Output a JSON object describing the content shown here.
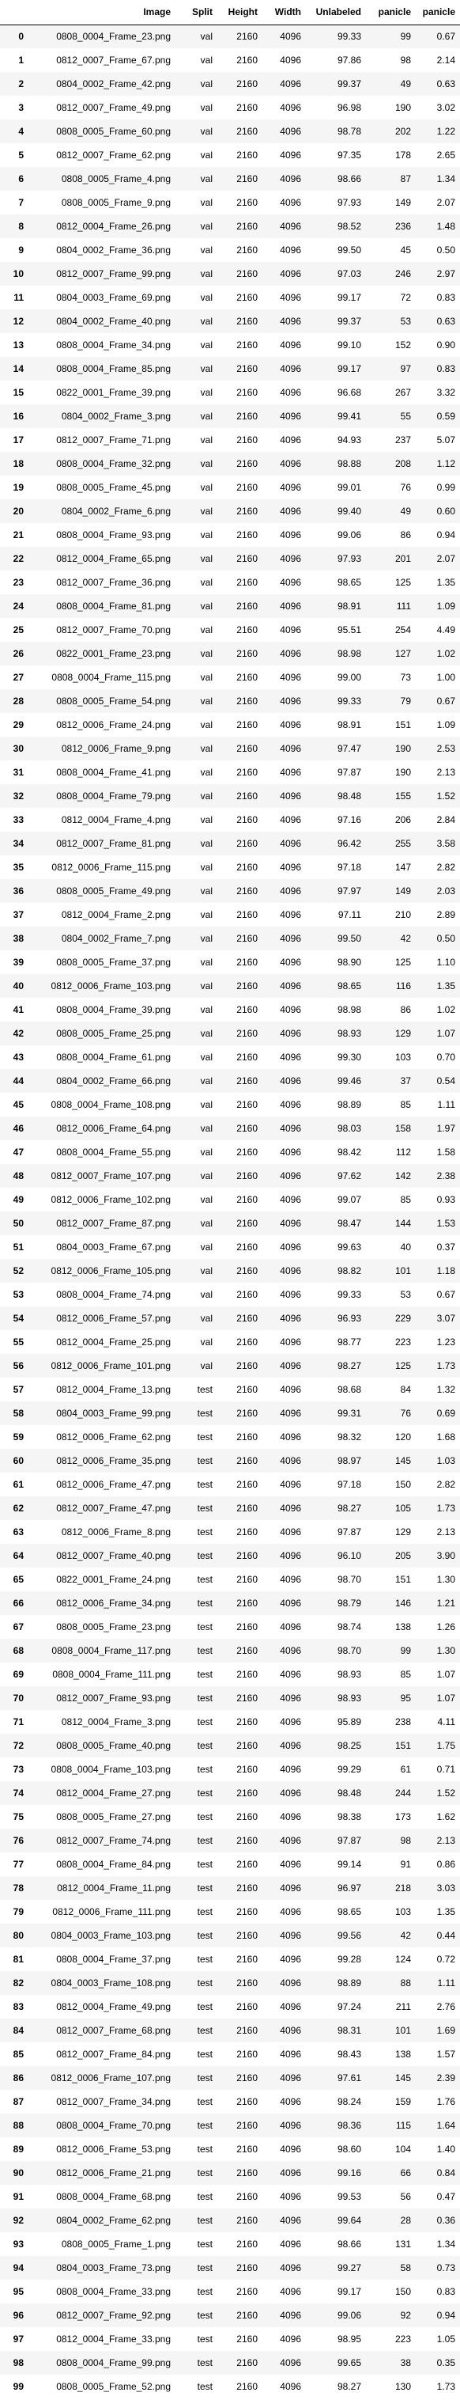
{
  "table": {
    "columns": [
      "",
      "Image",
      "Split",
      "Height",
      "Width",
      "Unlabeled",
      "panicle",
      "panicle"
    ],
    "rows": [
      [
        "0",
        "0808_0004_Frame_23.png",
        "val",
        "2160",
        "4096",
        "99.33",
        "99",
        "0.67"
      ],
      [
        "1",
        "0812_0007_Frame_67.png",
        "val",
        "2160",
        "4096",
        "97.86",
        "98",
        "2.14"
      ],
      [
        "2",
        "0804_0002_Frame_42.png",
        "val",
        "2160",
        "4096",
        "99.37",
        "49",
        "0.63"
      ],
      [
        "3",
        "0812_0007_Frame_49.png",
        "val",
        "2160",
        "4096",
        "96.98",
        "190",
        "3.02"
      ],
      [
        "4",
        "0808_0005_Frame_60.png",
        "val",
        "2160",
        "4096",
        "98.78",
        "202",
        "1.22"
      ],
      [
        "5",
        "0812_0007_Frame_62.png",
        "val",
        "2160",
        "4096",
        "97.35",
        "178",
        "2.65"
      ],
      [
        "6",
        "0808_0005_Frame_4.png",
        "val",
        "2160",
        "4096",
        "98.66",
        "87",
        "1.34"
      ],
      [
        "7",
        "0808_0005_Frame_9.png",
        "val",
        "2160",
        "4096",
        "97.93",
        "149",
        "2.07"
      ],
      [
        "8",
        "0812_0004_Frame_26.png",
        "val",
        "2160",
        "4096",
        "98.52",
        "236",
        "1.48"
      ],
      [
        "9",
        "0804_0002_Frame_36.png",
        "val",
        "2160",
        "4096",
        "99.50",
        "45",
        "0.50"
      ],
      [
        "10",
        "0812_0007_Frame_99.png",
        "val",
        "2160",
        "4096",
        "97.03",
        "246",
        "2.97"
      ],
      [
        "11",
        "0804_0003_Frame_69.png",
        "val",
        "2160",
        "4096",
        "99.17",
        "72",
        "0.83"
      ],
      [
        "12",
        "0804_0002_Frame_40.png",
        "val",
        "2160",
        "4096",
        "99.37",
        "53",
        "0.63"
      ],
      [
        "13",
        "0808_0004_Frame_34.png",
        "val",
        "2160",
        "4096",
        "99.10",
        "152",
        "0.90"
      ],
      [
        "14",
        "0808_0004_Frame_85.png",
        "val",
        "2160",
        "4096",
        "99.17",
        "97",
        "0.83"
      ],
      [
        "15",
        "0822_0001_Frame_39.png",
        "val",
        "2160",
        "4096",
        "96.68",
        "267",
        "3.32"
      ],
      [
        "16",
        "0804_0002_Frame_3.png",
        "val",
        "2160",
        "4096",
        "99.41",
        "55",
        "0.59"
      ],
      [
        "17",
        "0812_0007_Frame_71.png",
        "val",
        "2160",
        "4096",
        "94.93",
        "237",
        "5.07"
      ],
      [
        "18",
        "0808_0004_Frame_32.png",
        "val",
        "2160",
        "4096",
        "98.88",
        "208",
        "1.12"
      ],
      [
        "19",
        "0808_0005_Frame_45.png",
        "val",
        "2160",
        "4096",
        "99.01",
        "76",
        "0.99"
      ],
      [
        "20",
        "0804_0002_Frame_6.png",
        "val",
        "2160",
        "4096",
        "99.40",
        "49",
        "0.60"
      ],
      [
        "21",
        "0808_0004_Frame_93.png",
        "val",
        "2160",
        "4096",
        "99.06",
        "86",
        "0.94"
      ],
      [
        "22",
        "0812_0004_Frame_65.png",
        "val",
        "2160",
        "4096",
        "97.93",
        "201",
        "2.07"
      ],
      [
        "23",
        "0812_0007_Frame_36.png",
        "val",
        "2160",
        "4096",
        "98.65",
        "125",
        "1.35"
      ],
      [
        "24",
        "0808_0004_Frame_81.png",
        "val",
        "2160",
        "4096",
        "98.91",
        "111",
        "1.09"
      ],
      [
        "25",
        "0812_0007_Frame_70.png",
        "val",
        "2160",
        "4096",
        "95.51",
        "254",
        "4.49"
      ],
      [
        "26",
        "0822_0001_Frame_23.png",
        "val",
        "2160",
        "4096",
        "98.98",
        "127",
        "1.02"
      ],
      [
        "27",
        "0808_0004_Frame_115.png",
        "val",
        "2160",
        "4096",
        "99.00",
        "73",
        "1.00"
      ],
      [
        "28",
        "0808_0005_Frame_54.png",
        "val",
        "2160",
        "4096",
        "99.33",
        "79",
        "0.67"
      ],
      [
        "29",
        "0812_0006_Frame_24.png",
        "val",
        "2160",
        "4096",
        "98.91",
        "151",
        "1.09"
      ],
      [
        "30",
        "0812_0006_Frame_9.png",
        "val",
        "2160",
        "4096",
        "97.47",
        "190",
        "2.53"
      ],
      [
        "31",
        "0808_0004_Frame_41.png",
        "val",
        "2160",
        "4096",
        "97.87",
        "190",
        "2.13"
      ],
      [
        "32",
        "0808_0004_Frame_79.png",
        "val",
        "2160",
        "4096",
        "98.48",
        "155",
        "1.52"
      ],
      [
        "33",
        "0812_0004_Frame_4.png",
        "val",
        "2160",
        "4096",
        "97.16",
        "206",
        "2.84"
      ],
      [
        "34",
        "0812_0007_Frame_81.png",
        "val",
        "2160",
        "4096",
        "96.42",
        "255",
        "3.58"
      ],
      [
        "35",
        "0812_0006_Frame_115.png",
        "val",
        "2160",
        "4096",
        "97.18",
        "147",
        "2.82"
      ],
      [
        "36",
        "0808_0005_Frame_49.png",
        "val",
        "2160",
        "4096",
        "97.97",
        "149",
        "2.03"
      ],
      [
        "37",
        "0812_0004_Frame_2.png",
        "val",
        "2160",
        "4096",
        "97.11",
        "210",
        "2.89"
      ],
      [
        "38",
        "0804_0002_Frame_7.png",
        "val",
        "2160",
        "4096",
        "99.50",
        "42",
        "0.50"
      ],
      [
        "39",
        "0808_0005_Frame_37.png",
        "val",
        "2160",
        "4096",
        "98.90",
        "125",
        "1.10"
      ],
      [
        "40",
        "0812_0006_Frame_103.png",
        "val",
        "2160",
        "4096",
        "98.65",
        "116",
        "1.35"
      ],
      [
        "41",
        "0808_0004_Frame_39.png",
        "val",
        "2160",
        "4096",
        "98.98",
        "86",
        "1.02"
      ],
      [
        "42",
        "0808_0005_Frame_25.png",
        "val",
        "2160",
        "4096",
        "98.93",
        "129",
        "1.07"
      ],
      [
        "43",
        "0808_0004_Frame_61.png",
        "val",
        "2160",
        "4096",
        "99.30",
        "103",
        "0.70"
      ],
      [
        "44",
        "0804_0002_Frame_66.png",
        "val",
        "2160",
        "4096",
        "99.46",
        "37",
        "0.54"
      ],
      [
        "45",
        "0808_0004_Frame_108.png",
        "val",
        "2160",
        "4096",
        "98.89",
        "85",
        "1.11"
      ],
      [
        "46",
        "0812_0006_Frame_64.png",
        "val",
        "2160",
        "4096",
        "98.03",
        "158",
        "1.97"
      ],
      [
        "47",
        "0808_0004_Frame_55.png",
        "val",
        "2160",
        "4096",
        "98.42",
        "112",
        "1.58"
      ],
      [
        "48",
        "0812_0007_Frame_107.png",
        "val",
        "2160",
        "4096",
        "97.62",
        "142",
        "2.38"
      ],
      [
        "49",
        "0812_0006_Frame_102.png",
        "val",
        "2160",
        "4096",
        "99.07",
        "85",
        "0.93"
      ],
      [
        "50",
        "0812_0007_Frame_87.png",
        "val",
        "2160",
        "4096",
        "98.47",
        "144",
        "1.53"
      ],
      [
        "51",
        "0804_0003_Frame_67.png",
        "val",
        "2160",
        "4096",
        "99.63",
        "40",
        "0.37"
      ],
      [
        "52",
        "0812_0006_Frame_105.png",
        "val",
        "2160",
        "4096",
        "98.82",
        "101",
        "1.18"
      ],
      [
        "53",
        "0808_0004_Frame_74.png",
        "val",
        "2160",
        "4096",
        "99.33",
        "53",
        "0.67"
      ],
      [
        "54",
        "0812_0006_Frame_57.png",
        "val",
        "2160",
        "4096",
        "96.93",
        "229",
        "3.07"
      ],
      [
        "55",
        "0812_0004_Frame_25.png",
        "val",
        "2160",
        "4096",
        "98.77",
        "223",
        "1.23"
      ],
      [
        "56",
        "0812_0006_Frame_101.png",
        "val",
        "2160",
        "4096",
        "98.27",
        "125",
        "1.73"
      ],
      [
        "57",
        "0812_0004_Frame_13.png",
        "test",
        "2160",
        "4096",
        "98.68",
        "84",
        "1.32"
      ],
      [
        "58",
        "0804_0003_Frame_99.png",
        "test",
        "2160",
        "4096",
        "99.31",
        "76",
        "0.69"
      ],
      [
        "59",
        "0812_0006_Frame_62.png",
        "test",
        "2160",
        "4096",
        "98.32",
        "120",
        "1.68"
      ],
      [
        "60",
        "0812_0006_Frame_35.png",
        "test",
        "2160",
        "4096",
        "98.97",
        "145",
        "1.03"
      ],
      [
        "61",
        "0812_0006_Frame_47.png",
        "test",
        "2160",
        "4096",
        "97.18",
        "150",
        "2.82"
      ],
      [
        "62",
        "0812_0007_Frame_47.png",
        "test",
        "2160",
        "4096",
        "98.27",
        "105",
        "1.73"
      ],
      [
        "63",
        "0812_0006_Frame_8.png",
        "test",
        "2160",
        "4096",
        "97.87",
        "129",
        "2.13"
      ],
      [
        "64",
        "0812_0007_Frame_40.png",
        "test",
        "2160",
        "4096",
        "96.10",
        "205",
        "3.90"
      ],
      [
        "65",
        "0822_0001_Frame_24.png",
        "test",
        "2160",
        "4096",
        "98.70",
        "151",
        "1.30"
      ],
      [
        "66",
        "0812_0006_Frame_34.png",
        "test",
        "2160",
        "4096",
        "98.79",
        "146",
        "1.21"
      ],
      [
        "67",
        "0808_0005_Frame_23.png",
        "test",
        "2160",
        "4096",
        "98.74",
        "138",
        "1.26"
      ],
      [
        "68",
        "0808_0004_Frame_117.png",
        "test",
        "2160",
        "4096",
        "98.70",
        "99",
        "1.30"
      ],
      [
        "69",
        "0808_0004_Frame_111.png",
        "test",
        "2160",
        "4096",
        "98.93",
        "85",
        "1.07"
      ],
      [
        "70",
        "0812_0007_Frame_93.png",
        "test",
        "2160",
        "4096",
        "98.93",
        "95",
        "1.07"
      ],
      [
        "71",
        "0812_0004_Frame_3.png",
        "test",
        "2160",
        "4096",
        "95.89",
        "238",
        "4.11"
      ],
      [
        "72",
        "0808_0005_Frame_40.png",
        "test",
        "2160",
        "4096",
        "98.25",
        "151",
        "1.75"
      ],
      [
        "73",
        "0808_0004_Frame_103.png",
        "test",
        "2160",
        "4096",
        "99.29",
        "61",
        "0.71"
      ],
      [
        "74",
        "0812_0004_Frame_27.png",
        "test",
        "2160",
        "4096",
        "98.48",
        "244",
        "1.52"
      ],
      [
        "75",
        "0808_0005_Frame_27.png",
        "test",
        "2160",
        "4096",
        "98.38",
        "173",
        "1.62"
      ],
      [
        "76",
        "0812_0007_Frame_74.png",
        "test",
        "2160",
        "4096",
        "97.87",
        "98",
        "2.13"
      ],
      [
        "77",
        "0808_0004_Frame_84.png",
        "test",
        "2160",
        "4096",
        "99.14",
        "91",
        "0.86"
      ],
      [
        "78",
        "0812_0004_Frame_11.png",
        "test",
        "2160",
        "4096",
        "96.97",
        "218",
        "3.03"
      ],
      [
        "79",
        "0812_0006_Frame_111.png",
        "test",
        "2160",
        "4096",
        "98.65",
        "103",
        "1.35"
      ],
      [
        "80",
        "0804_0003_Frame_103.png",
        "test",
        "2160",
        "4096",
        "99.56",
        "42",
        "0.44"
      ],
      [
        "81",
        "0808_0004_Frame_37.png",
        "test",
        "2160",
        "4096",
        "99.28",
        "124",
        "0.72"
      ],
      [
        "82",
        "0804_0003_Frame_108.png",
        "test",
        "2160",
        "4096",
        "98.89",
        "88",
        "1.11"
      ],
      [
        "83",
        "0812_0004_Frame_49.png",
        "test",
        "2160",
        "4096",
        "97.24",
        "211",
        "2.76"
      ],
      [
        "84",
        "0812_0007_Frame_68.png",
        "test",
        "2160",
        "4096",
        "98.31",
        "101",
        "1.69"
      ],
      [
        "85",
        "0812_0007_Frame_84.png",
        "test",
        "2160",
        "4096",
        "98.43",
        "138",
        "1.57"
      ],
      [
        "86",
        "0812_0006_Frame_107.png",
        "test",
        "2160",
        "4096",
        "97.61",
        "145",
        "2.39"
      ],
      [
        "87",
        "0812_0007_Frame_34.png",
        "test",
        "2160",
        "4096",
        "98.24",
        "159",
        "1.76"
      ],
      [
        "88",
        "0808_0004_Frame_70.png",
        "test",
        "2160",
        "4096",
        "98.36",
        "115",
        "1.64"
      ],
      [
        "89",
        "0812_0006_Frame_53.png",
        "test",
        "2160",
        "4096",
        "98.60",
        "104",
        "1.40"
      ],
      [
        "90",
        "0812_0006_Frame_21.png",
        "test",
        "2160",
        "4096",
        "99.16",
        "66",
        "0.84"
      ],
      [
        "91",
        "0808_0004_Frame_68.png",
        "test",
        "2160",
        "4096",
        "99.53",
        "56",
        "0.47"
      ],
      [
        "92",
        "0804_0002_Frame_62.png",
        "test",
        "2160",
        "4096",
        "99.64",
        "28",
        "0.36"
      ],
      [
        "93",
        "0808_0005_Frame_1.png",
        "test",
        "2160",
        "4096",
        "98.66",
        "131",
        "1.34"
      ],
      [
        "94",
        "0804_0003_Frame_73.png",
        "test",
        "2160",
        "4096",
        "99.27",
        "58",
        "0.73"
      ],
      [
        "95",
        "0808_0004_Frame_33.png",
        "test",
        "2160",
        "4096",
        "99.17",
        "150",
        "0.83"
      ],
      [
        "96",
        "0812_0007_Frame_92.png",
        "test",
        "2160",
        "4096",
        "99.06",
        "92",
        "0.94"
      ],
      [
        "97",
        "0812_0004_Frame_33.png",
        "test",
        "2160",
        "4096",
        "98.95",
        "223",
        "1.05"
      ],
      [
        "98",
        "0808_0004_Frame_99.png",
        "test",
        "2160",
        "4096",
        "99.65",
        "38",
        "0.35"
      ],
      [
        "99",
        "0808_0005_Frame_52.png",
        "test",
        "2160",
        "4096",
        "98.27",
        "130",
        "1.73"
      ]
    ]
  }
}
